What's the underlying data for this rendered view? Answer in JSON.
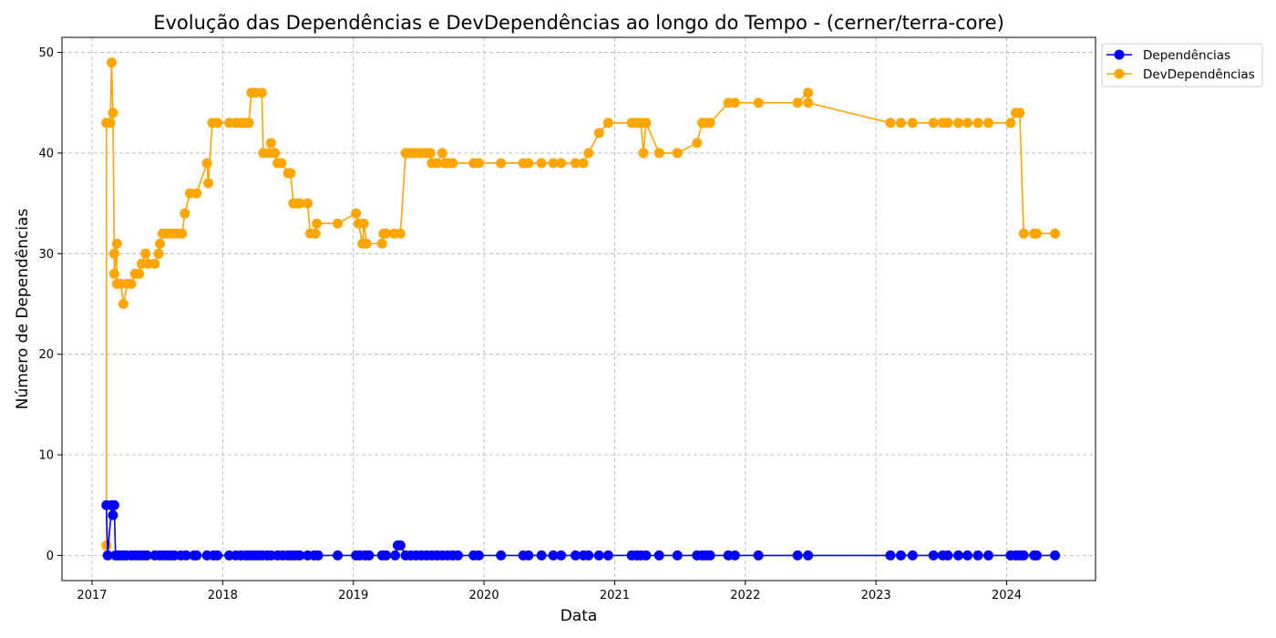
{
  "chart_data": {
    "type": "line",
    "title": "Evolução das Dependências e DevDependências ao longo do Tempo - (cerner/terra-core)",
    "xlabel": "Data",
    "ylabel": "Número de Dependências",
    "xlim": [
      2016.77,
      2024.68
    ],
    "ylim": [
      -2.5,
      51.5
    ],
    "x_ticks": [
      2017,
      2018,
      2019,
      2020,
      2021,
      2022,
      2023,
      2024
    ],
    "x_tick_labels": [
      "2017",
      "2018",
      "2019",
      "2020",
      "2021",
      "2022",
      "2023",
      "2024"
    ],
    "y_ticks": [
      0,
      10,
      20,
      30,
      40,
      50
    ],
    "y_tick_labels": [
      "0",
      "10",
      "20",
      "30",
      "40",
      "50"
    ],
    "grid": true,
    "legend_position": "outside-top-right",
    "series": [
      {
        "name": "Dependências",
        "color": "#0000ff",
        "marker": "circle",
        "points": [
          [
            2017.11,
            5
          ],
          [
            2017.12,
            0
          ],
          [
            2017.15,
            5
          ],
          [
            2017.16,
            4
          ],
          [
            2017.17,
            5
          ],
          [
            2017.18,
            0
          ],
          [
            2017.2,
            0
          ],
          [
            2017.22,
            0
          ],
          [
            2017.24,
            0
          ],
          [
            2017.26,
            0
          ],
          [
            2017.3,
            0
          ],
          [
            2017.33,
            0
          ],
          [
            2017.36,
            0
          ],
          [
            2017.39,
            0
          ],
          [
            2017.42,
            0
          ],
          [
            2017.48,
            0
          ],
          [
            2017.52,
            0
          ],
          [
            2017.55,
            0
          ],
          [
            2017.58,
            0
          ],
          [
            2017.6,
            0
          ],
          [
            2017.63,
            0
          ],
          [
            2017.68,
            0
          ],
          [
            2017.72,
            0
          ],
          [
            2017.78,
            0
          ],
          [
            2017.8,
            0
          ],
          [
            2017.88,
            0
          ],
          [
            2017.93,
            0
          ],
          [
            2017.96,
            0
          ],
          [
            2018.05,
            0
          ],
          [
            2018.1,
            0
          ],
          [
            2018.14,
            0
          ],
          [
            2018.18,
            0
          ],
          [
            2018.21,
            0
          ],
          [
            2018.24,
            0
          ],
          [
            2018.27,
            0
          ],
          [
            2018.3,
            0
          ],
          [
            2018.34,
            0
          ],
          [
            2018.37,
            0
          ],
          [
            2018.42,
            0
          ],
          [
            2018.46,
            0
          ],
          [
            2018.5,
            0
          ],
          [
            2018.53,
            0
          ],
          [
            2018.56,
            0
          ],
          [
            2018.59,
            0
          ],
          [
            2018.65,
            0
          ],
          [
            2018.7,
            0
          ],
          [
            2018.73,
            0
          ],
          [
            2018.88,
            0
          ],
          [
            2019.02,
            0
          ],
          [
            2019.05,
            0
          ],
          [
            2019.09,
            0
          ],
          [
            2019.12,
            0
          ],
          [
            2019.22,
            0
          ],
          [
            2019.25,
            0
          ],
          [
            2019.32,
            0
          ],
          [
            2019.34,
            1
          ],
          [
            2019.36,
            1
          ],
          [
            2019.4,
            0
          ],
          [
            2019.44,
            0
          ],
          [
            2019.48,
            0
          ],
          [
            2019.52,
            0
          ],
          [
            2019.56,
            0
          ],
          [
            2019.6,
            0
          ],
          [
            2019.64,
            0
          ],
          [
            2019.68,
            0
          ],
          [
            2019.72,
            0
          ],
          [
            2019.76,
            0
          ],
          [
            2019.8,
            0
          ],
          [
            2019.92,
            0
          ],
          [
            2019.96,
            0
          ],
          [
            2020.13,
            0
          ],
          [
            2020.3,
            0
          ],
          [
            2020.34,
            0
          ],
          [
            2020.44,
            0
          ],
          [
            2020.53,
            0
          ],
          [
            2020.59,
            0
          ],
          [
            2020.7,
            0
          ],
          [
            2020.76,
            0
          ],
          [
            2020.8,
            0
          ],
          [
            2020.88,
            0
          ],
          [
            2020.95,
            0
          ],
          [
            2021.13,
            0
          ],
          [
            2021.17,
            0
          ],
          [
            2021.2,
            0
          ],
          [
            2021.24,
            0
          ],
          [
            2021.34,
            0
          ],
          [
            2021.48,
            0
          ],
          [
            2021.63,
            0
          ],
          [
            2021.67,
            0
          ],
          [
            2021.7,
            0
          ],
          [
            2021.73,
            0
          ],
          [
            2021.87,
            0
          ],
          [
            2021.92,
            0
          ],
          [
            2022.1,
            0
          ],
          [
            2022.4,
            0
          ],
          [
            2022.48,
            0
          ],
          [
            2023.11,
            0
          ],
          [
            2023.19,
            0
          ],
          [
            2023.28,
            0
          ],
          [
            2023.44,
            0
          ],
          [
            2023.51,
            0
          ],
          [
            2023.55,
            0
          ],
          [
            2023.63,
            0
          ],
          [
            2023.7,
            0
          ],
          [
            2023.78,
            0
          ],
          [
            2023.86,
            0
          ],
          [
            2024.03,
            0
          ],
          [
            2024.07,
            0
          ],
          [
            2024.1,
            0
          ],
          [
            2024.13,
            0
          ],
          [
            2024.21,
            0
          ],
          [
            2024.23,
            0
          ],
          [
            2024.37,
            0
          ]
        ]
      },
      {
        "name": "DevDependências",
        "color": "#ffa500",
        "marker": "circle",
        "points": [
          [
            2017.11,
            1
          ],
          [
            2017.11,
            43
          ],
          [
            2017.14,
            43
          ],
          [
            2017.15,
            49
          ],
          [
            2017.16,
            44
          ],
          [
            2017.17,
            30
          ],
          [
            2017.17,
            28
          ],
          [
            2017.19,
            31
          ],
          [
            2017.19,
            27
          ],
          [
            2017.22,
            27
          ],
          [
            2017.24,
            25
          ],
          [
            2017.27,
            27
          ],
          [
            2017.3,
            27
          ],
          [
            2017.33,
            28
          ],
          [
            2017.36,
            28
          ],
          [
            2017.38,
            29
          ],
          [
            2017.41,
            30
          ],
          [
            2017.43,
            29
          ],
          [
            2017.48,
            29
          ],
          [
            2017.51,
            30
          ],
          [
            2017.52,
            31
          ],
          [
            2017.54,
            32
          ],
          [
            2017.57,
            32
          ],
          [
            2017.6,
            32
          ],
          [
            2017.63,
            32
          ],
          [
            2017.66,
            32
          ],
          [
            2017.69,
            32
          ],
          [
            2017.71,
            34
          ],
          [
            2017.75,
            36
          ],
          [
            2017.8,
            36
          ],
          [
            2017.88,
            39
          ],
          [
            2017.89,
            37
          ],
          [
            2017.92,
            43
          ],
          [
            2017.96,
            43
          ],
          [
            2018.05,
            43
          ],
          [
            2018.1,
            43
          ],
          [
            2018.14,
            43
          ],
          [
            2018.17,
            43
          ],
          [
            2018.2,
            43
          ],
          [
            2018.22,
            46
          ],
          [
            2018.25,
            46
          ],
          [
            2018.3,
            46
          ],
          [
            2018.31,
            40
          ],
          [
            2018.35,
            40
          ],
          [
            2018.37,
            41
          ],
          [
            2018.4,
            40
          ],
          [
            2018.42,
            39
          ],
          [
            2018.45,
            39
          ],
          [
            2018.5,
            38
          ],
          [
            2018.52,
            38
          ],
          [
            2018.54,
            35
          ],
          [
            2018.57,
            35
          ],
          [
            2018.59,
            35
          ],
          [
            2018.65,
            35
          ],
          [
            2018.67,
            32
          ],
          [
            2018.71,
            32
          ],
          [
            2018.72,
            33
          ],
          [
            2018.88,
            33
          ],
          [
            2019.02,
            34
          ],
          [
            2019.04,
            33
          ],
          [
            2019.07,
            31
          ],
          [
            2019.08,
            33
          ],
          [
            2019.1,
            31
          ],
          [
            2019.22,
            31
          ],
          [
            2019.23,
            32
          ],
          [
            2019.25,
            32
          ],
          [
            2019.31,
            32
          ],
          [
            2019.36,
            32
          ],
          [
            2019.4,
            40
          ],
          [
            2019.43,
            40
          ],
          [
            2019.46,
            40
          ],
          [
            2019.48,
            40
          ],
          [
            2019.52,
            40
          ],
          [
            2019.56,
            40
          ],
          [
            2019.59,
            40
          ],
          [
            2019.6,
            39
          ],
          [
            2019.64,
            39
          ],
          [
            2019.68,
            40
          ],
          [
            2019.7,
            39
          ],
          [
            2019.72,
            39
          ],
          [
            2019.76,
            39
          ],
          [
            2019.92,
            39
          ],
          [
            2019.96,
            39
          ],
          [
            2020.13,
            39
          ],
          [
            2020.3,
            39
          ],
          [
            2020.34,
            39
          ],
          [
            2020.44,
            39
          ],
          [
            2020.53,
            39
          ],
          [
            2020.59,
            39
          ],
          [
            2020.7,
            39
          ],
          [
            2020.76,
            39
          ],
          [
            2020.8,
            40
          ],
          [
            2020.88,
            42
          ],
          [
            2020.95,
            43
          ],
          [
            2021.13,
            43
          ],
          [
            2021.17,
            43
          ],
          [
            2021.2,
            43
          ],
          [
            2021.22,
            40
          ],
          [
            2021.24,
            43
          ],
          [
            2021.34,
            40
          ],
          [
            2021.48,
            40
          ],
          [
            2021.63,
            41
          ],
          [
            2021.67,
            43
          ],
          [
            2021.7,
            43
          ],
          [
            2021.73,
            43
          ],
          [
            2021.87,
            45
          ],
          [
            2021.92,
            45
          ],
          [
            2022.1,
            45
          ],
          [
            2022.4,
            45
          ],
          [
            2022.48,
            46
          ],
          [
            2022.48,
            45
          ],
          [
            2023.11,
            43
          ],
          [
            2023.19,
            43
          ],
          [
            2023.28,
            43
          ],
          [
            2023.44,
            43
          ],
          [
            2023.51,
            43
          ],
          [
            2023.55,
            43
          ],
          [
            2023.63,
            43
          ],
          [
            2023.7,
            43
          ],
          [
            2023.78,
            43
          ],
          [
            2023.86,
            43
          ],
          [
            2024.03,
            43
          ],
          [
            2024.07,
            44
          ],
          [
            2024.1,
            44
          ],
          [
            2024.13,
            32
          ],
          [
            2024.21,
            32
          ],
          [
            2024.23,
            32
          ],
          [
            2024.37,
            32
          ]
        ]
      }
    ]
  }
}
